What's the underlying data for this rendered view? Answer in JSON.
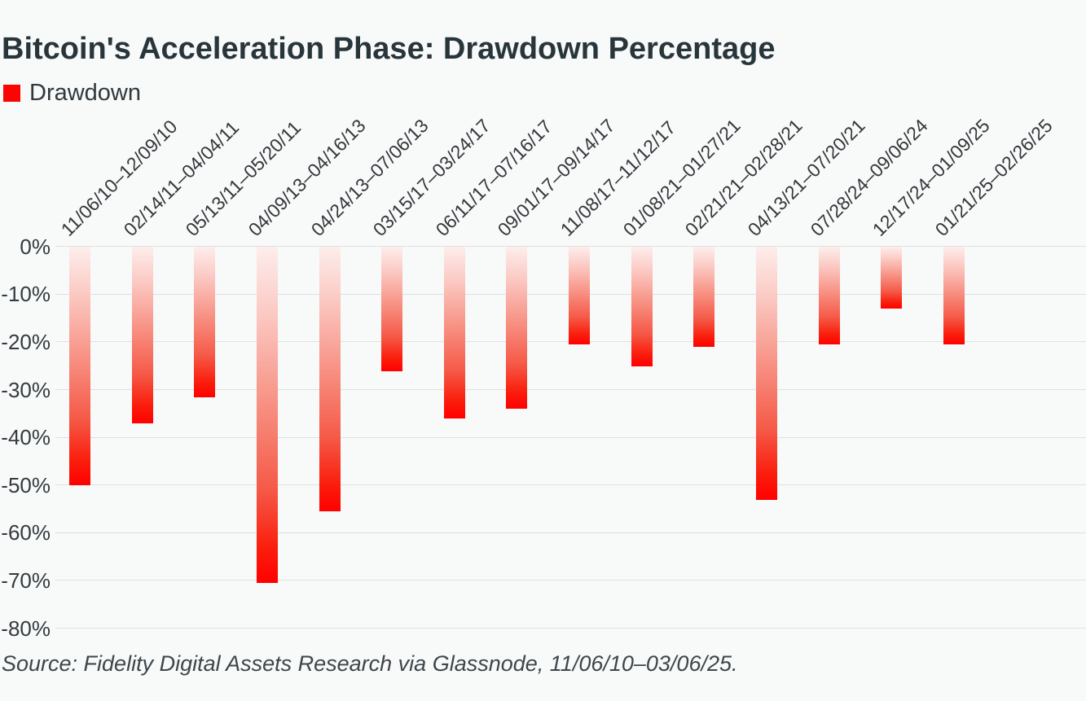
{
  "title": "Bitcoin's Acceleration Phase: Drawdown Percentage",
  "legend": {
    "label": "Drawdown",
    "swatch_color": "#fb0404"
  },
  "source_note": "Source: Fidelity Digital Assets Research via Glassnode, 11/06/10–03/06/25.",
  "colors": {
    "background": "#f8f9f9",
    "gridline": "#e0e1e1",
    "title_text": "#28363c",
    "axis_text": "#333b3f",
    "bar_gradient_top": "#fdeeec",
    "bar_gradient_bottom": "#ff0000"
  },
  "chart_data": {
    "type": "bar",
    "title": "Bitcoin's Acceleration Phase: Drawdown Percentage",
    "series_name": "Drawdown",
    "categories": [
      "11/06/10–12/09/10",
      "02/14/11–04/04/11",
      "05/13/11–05/20/11",
      "04/09/13–04/16/13",
      "04/24/13–07/06/13",
      "03/15/17–03/24/17",
      "06/11/17–07/16/17",
      "09/01/17–09/14/17",
      "11/08/17–11/12/17",
      "01/08/21–01/27/21",
      "02/21/21–02/28/21",
      "04/13/21–07/20/21",
      "07/28/24–09/06/24",
      "12/17/24–01/09/25",
      "01/21/25–02/26/25"
    ],
    "values": [
      -50,
      -37,
      -31.5,
      -70.5,
      -55.5,
      -26,
      -36,
      -34,
      -20.5,
      -25,
      -21,
      -53,
      -20.5,
      -13,
      -20.5
    ],
    "unit": "%",
    "xlabel": "",
    "ylabel": "",
    "ylim": [
      -80,
      0
    ],
    "yticks": [
      "0%",
      "-10%",
      "-20%",
      "-30%",
      "-40%",
      "-50%",
      "-60%",
      "-70%",
      "-80%"
    ],
    "grid": true,
    "legend_position": "top-left"
  }
}
